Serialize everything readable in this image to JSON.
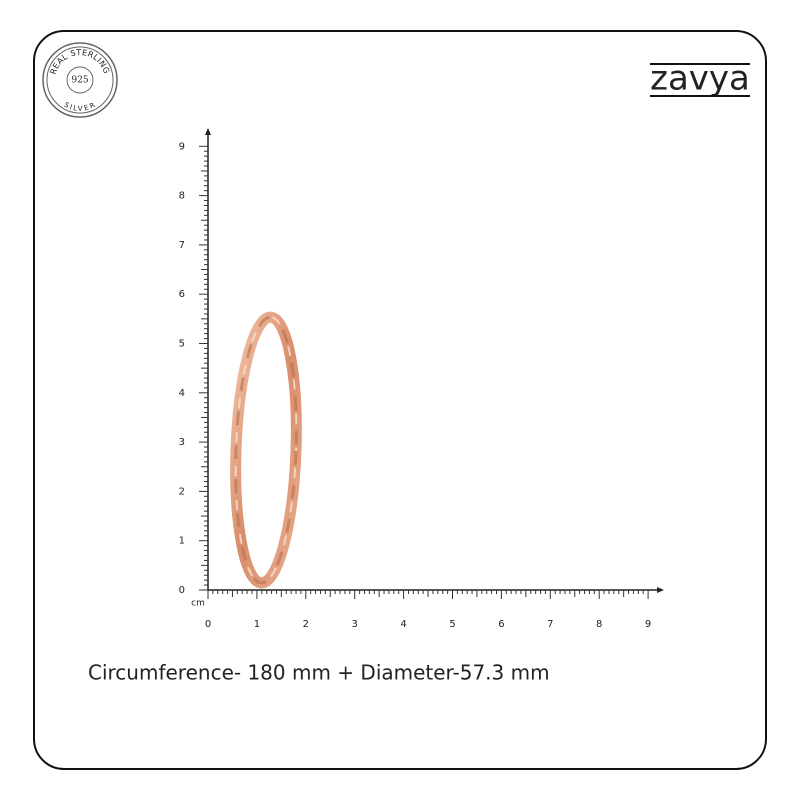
{
  "badge": {
    "top": "REAL STERLING",
    "center": "925",
    "bottom": "SILVER"
  },
  "brand": "zavya",
  "ruler": {
    "unit": "cm",
    "x_labels": [
      0,
      1,
      2,
      3,
      4,
      5,
      6,
      7,
      8,
      9
    ],
    "y_labels": [
      0,
      1,
      2,
      3,
      4,
      5,
      6,
      7,
      8,
      9
    ]
  },
  "caption": "Circumference- 180 mm + Diameter-57.3 mm"
}
